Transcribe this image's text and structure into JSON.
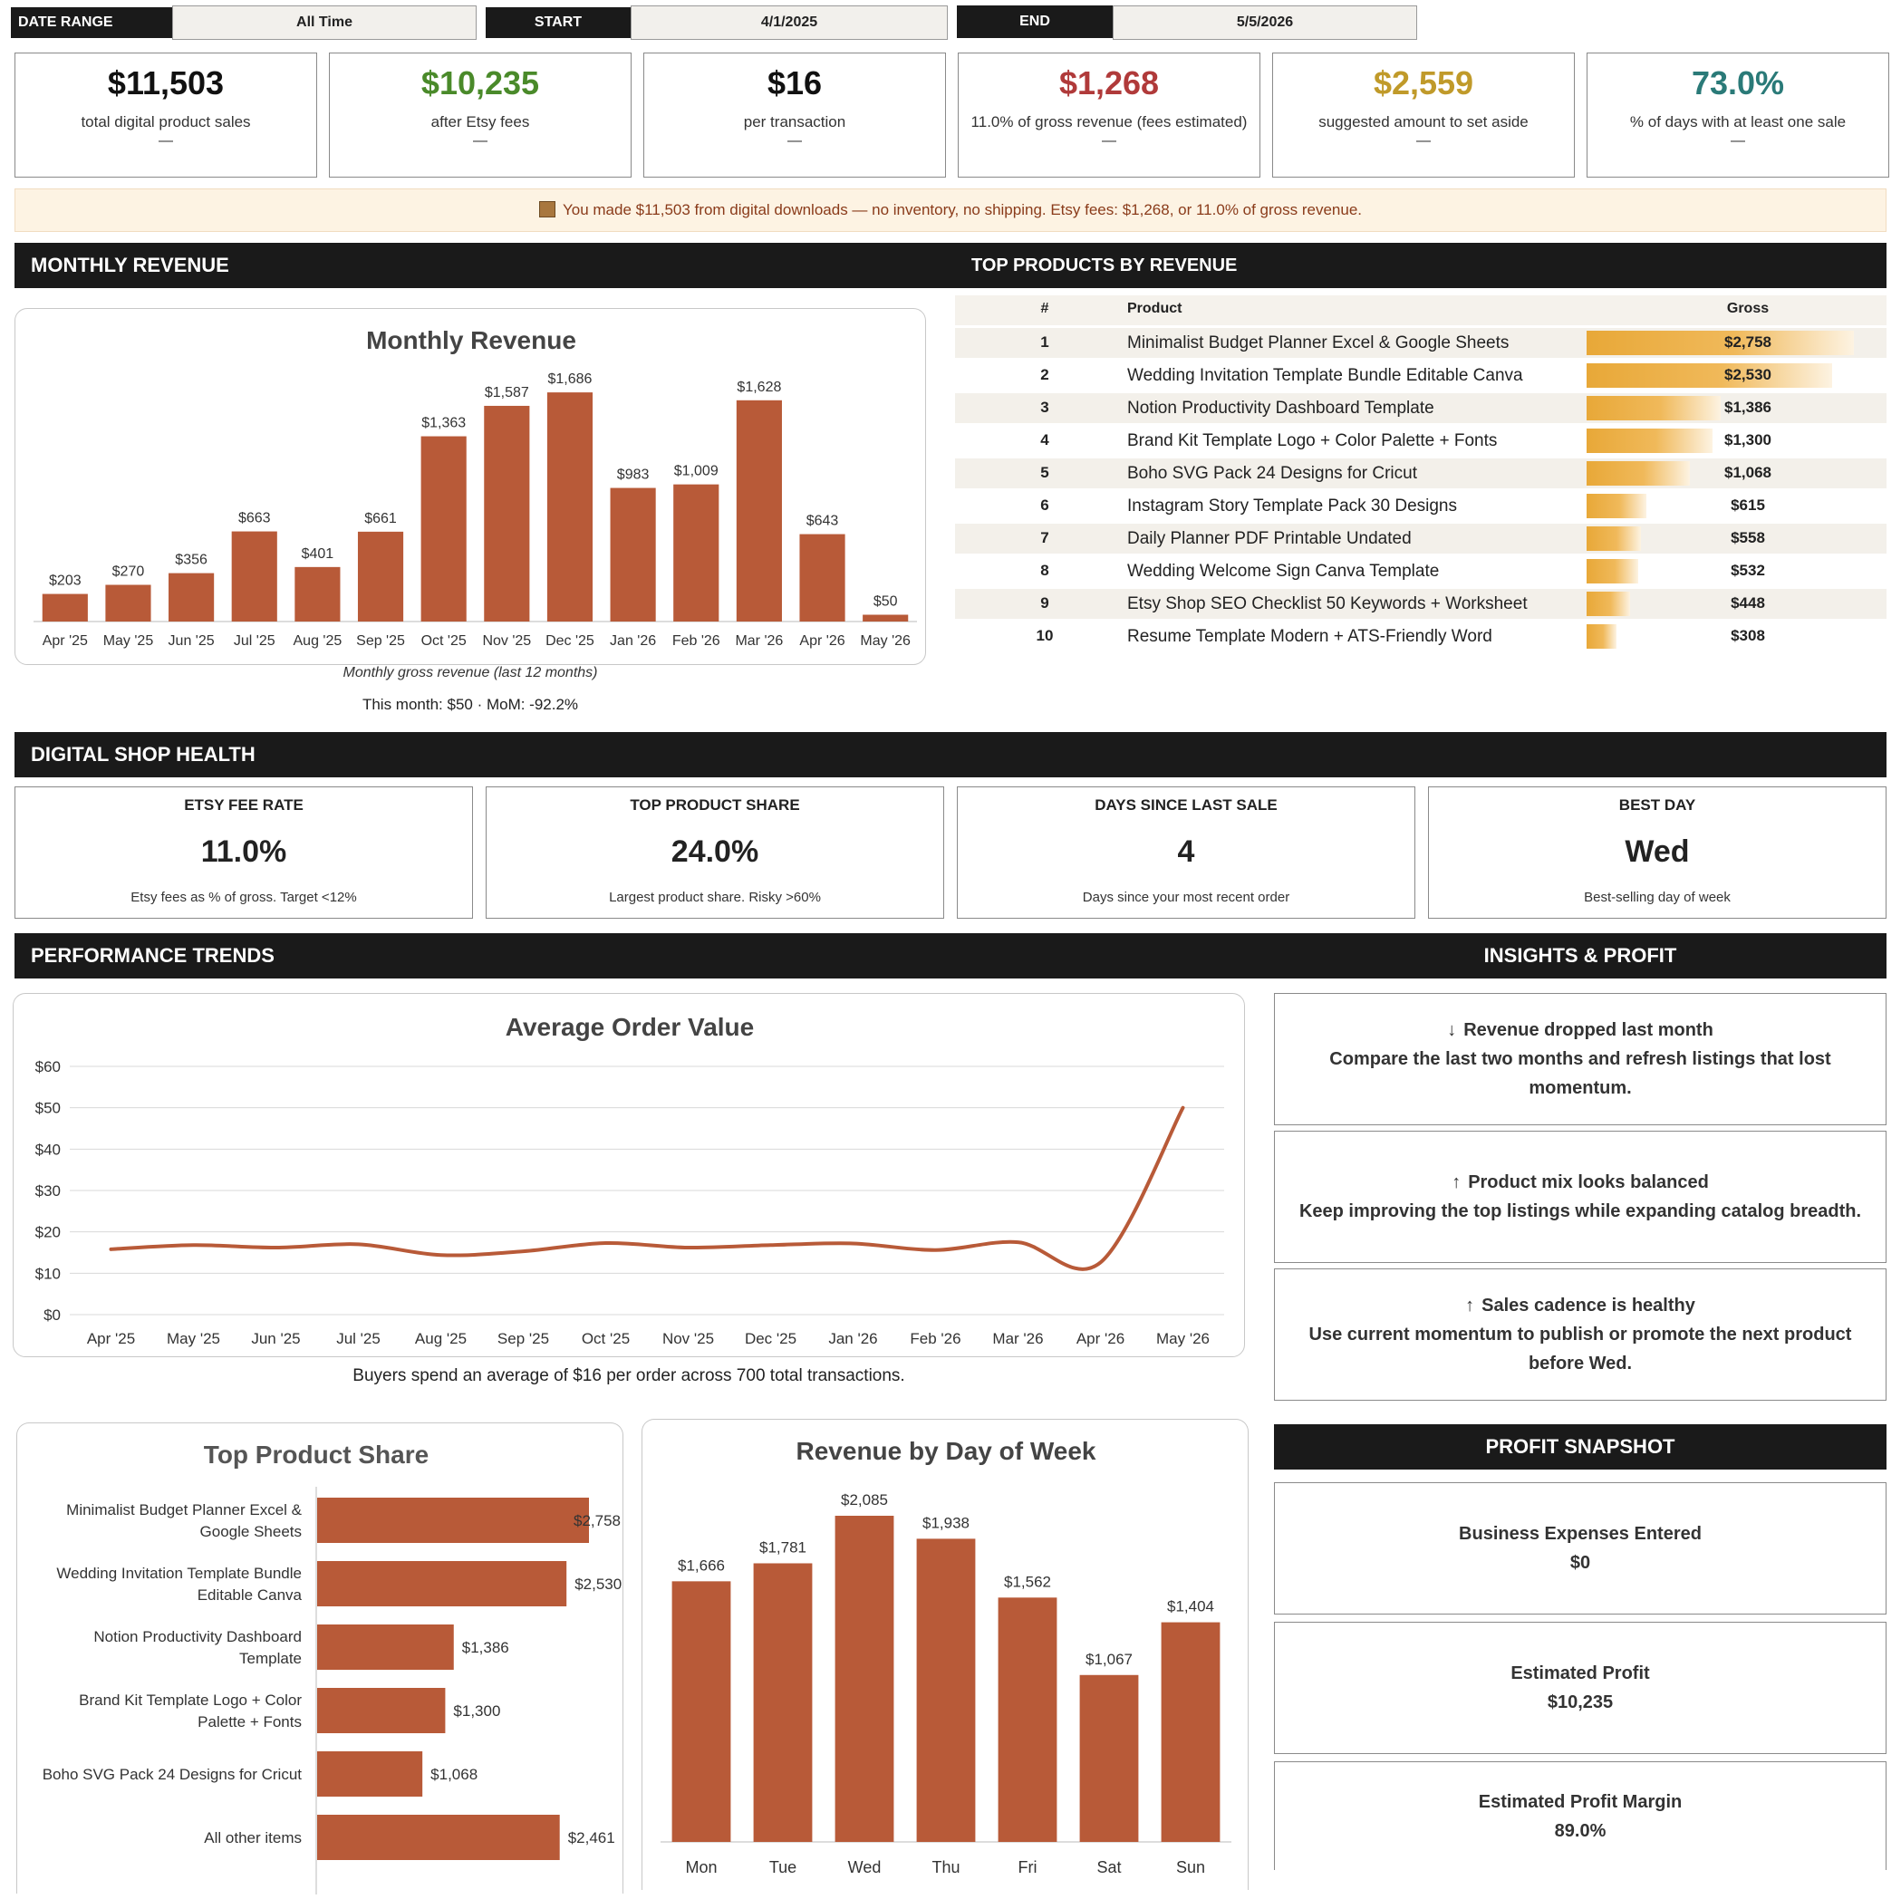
{
  "filters": {
    "date_range_label": "DATE RANGE",
    "date_range_value": "All Time",
    "start_label": "START",
    "start_value": "4/1/2025",
    "end_label": "END",
    "end_value": "5/5/2026"
  },
  "kpis": [
    {
      "value": "$11,503",
      "sub": "total digital product sales",
      "delta": "—",
      "color": "#111111"
    },
    {
      "value": "$10,235",
      "sub": "after Etsy fees",
      "delta": "—",
      "color": "#4a8a2a"
    },
    {
      "value": "$16",
      "sub": "per transaction",
      "delta": "—",
      "color": "#111111"
    },
    {
      "value": "$1,268",
      "sub": "11.0% of gross revenue (fees estimated)",
      "delta": "—",
      "color": "#b03a3a"
    },
    {
      "value": "$2,559",
      "sub": "suggested amount to set aside",
      "delta": "—",
      "color": "#c09a2a"
    },
    {
      "value": "73.0%",
      "sub": "% of days with at least one sale",
      "delta": "—",
      "color": "#2a7a78"
    }
  ],
  "banner": {
    "icon": "package-icon",
    "text": "You made $11,503 from digital downloads — no inventory, no shipping. Etsy fees: $1,268, or 11.0% of gross revenue."
  },
  "sections": {
    "monthly_revenue": "MONTHLY REVENUE",
    "top_products": "TOP PRODUCTS BY REVENUE",
    "shop_health": "DIGITAL SHOP HEALTH",
    "performance": "PERFORMANCE TRENDS",
    "insights": "INSIGHTS & PROFIT",
    "profit_snapshot": "PROFIT SNAPSHOT"
  },
  "monthly_chart": {
    "caption": "Monthly gross revenue (last 12 months)",
    "summary": "This month: $50 · MoM: -92.2%"
  },
  "top_products": {
    "headers": {
      "num": "#",
      "product": "Product",
      "gross": "Gross"
    },
    "rows": [
      {
        "num": "1",
        "name": "Minimalist Budget Planner Excel & Google Sheets",
        "gross": "$2,758",
        "value": 2758
      },
      {
        "num": "2",
        "name": "Wedding Invitation Template Bundle Editable Canva",
        "gross": "$2,530",
        "value": 2530
      },
      {
        "num": "3",
        "name": "Notion Productivity Dashboard Template",
        "gross": "$1,386",
        "value": 1386
      },
      {
        "num": "4",
        "name": "Brand Kit Template Logo + Color Palette + Fonts",
        "gross": "$1,300",
        "value": 1300
      },
      {
        "num": "5",
        "name": "Boho SVG Pack 24 Designs for Cricut",
        "gross": "$1,068",
        "value": 1068
      },
      {
        "num": "6",
        "name": "Instagram Story Template Pack 30 Designs",
        "gross": "$615",
        "value": 615
      },
      {
        "num": "7",
        "name": "Daily Planner PDF Printable Undated",
        "gross": "$558",
        "value": 558
      },
      {
        "num": "8",
        "name": "Wedding Welcome Sign Canva Template",
        "gross": "$532",
        "value": 532
      },
      {
        "num": "9",
        "name": "Etsy Shop SEO Checklist 50 Keywords + Worksheet",
        "gross": "$448",
        "value": 448
      },
      {
        "num": "10",
        "name": "Resume Template Modern + ATS-Friendly Word",
        "gross": "$308",
        "value": 308
      }
    ]
  },
  "health": [
    {
      "title": "ETSY FEE RATE",
      "value": "11.0%",
      "sub": "Etsy fees as % of gross. Target <12%"
    },
    {
      "title": "TOP PRODUCT SHARE",
      "value": "24.0%",
      "sub": "Largest product share. Risky >60%"
    },
    {
      "title": "DAYS SINCE LAST SALE",
      "value": "4",
      "sub": "Days since your most recent order"
    },
    {
      "title": "BEST DAY",
      "value": "Wed",
      "sub": "Best-selling day of week"
    }
  ],
  "aov": {
    "caption": "Buyers spend an average of $16 per order across 700 total transactions."
  },
  "insights": [
    {
      "icon": "arrow-down-icon",
      "arrow": "↓",
      "title": "Revenue dropped last month",
      "body": "Compare the last two months and refresh listings that lost momentum."
    },
    {
      "icon": "arrow-up-icon",
      "arrow": "↑",
      "title": "Product mix looks balanced",
      "body": "Keep improving the top listings while expanding catalog breadth."
    },
    {
      "icon": "arrow-up-icon",
      "arrow": "↑",
      "title": "Sales cadence is healthy",
      "body": "Use current momentum to publish or promote the next product before Wed."
    }
  ],
  "profit": [
    {
      "label": "Business Expenses Entered",
      "value": "$0"
    },
    {
      "label": "Estimated Profit",
      "value": "$10,235"
    },
    {
      "label": "Estimated Profit Margin",
      "value": "89.0%"
    }
  ],
  "colors": {
    "bar": "#b85a38",
    "gold": "#e8a838",
    "dark": "#1a1a1a"
  },
  "chart_data": [
    {
      "type": "bar",
      "title": "Monthly Revenue",
      "categories": [
        "Apr '25",
        "May '25",
        "Jun '25",
        "Jul '25",
        "Aug '25",
        "Sep '25",
        "Oct '25",
        "Nov '25",
        "Dec '25",
        "Jan '26",
        "Feb '26",
        "Mar '26",
        "Apr '26",
        "May '26"
      ],
      "values": [
        203,
        270,
        356,
        663,
        401,
        661,
        1363,
        1587,
        1686,
        983,
        1009,
        1628,
        643,
        50
      ],
      "labels": [
        "$203",
        "$270",
        "$356",
        "$663",
        "$401",
        "$661",
        "$1,363",
        "$1,587",
        "$1,686",
        "$983",
        "$1,009",
        "$1,628",
        "$643",
        "$50"
      ],
      "ylim": [
        0,
        1800
      ]
    },
    {
      "type": "line",
      "title": "Average Order Value",
      "categories": [
        "Apr '25",
        "May '25",
        "Jun '25",
        "Jul '25",
        "Aug '25",
        "Sep '25",
        "Oct '25",
        "Nov '25",
        "Dec '25",
        "Jan '26",
        "Feb '26",
        "Mar '26",
        "Apr '26",
        "May '26"
      ],
      "values": [
        15.8,
        16.8,
        16.2,
        17.0,
        14.4,
        15.3,
        17.3,
        16.2,
        16.8,
        17.2,
        15.6,
        17.5,
        12.6,
        50.0
      ],
      "yticks": [
        "$0",
        "$10",
        "$20",
        "$30",
        "$40",
        "$50",
        "$60"
      ],
      "ylim": [
        0,
        60
      ],
      "grid": true
    },
    {
      "type": "bar",
      "orientation": "horizontal",
      "title": "Top Product Share",
      "categories": [
        "Minimalist Budget Planner Excel & Google Sheets",
        "Wedding Invitation Template Bundle Editable Canva",
        "Notion Productivity Dashboard Template",
        "Brand Kit Template Logo + Color Palette + Fonts",
        "Boho SVG Pack 24 Designs for Cricut",
        "All other items"
      ],
      "category_lines": [
        [
          "Minimalist Budget Planner Excel &",
          "Google Sheets"
        ],
        [
          "Wedding Invitation Template Bundle",
          "Editable Canva"
        ],
        [
          "Notion Productivity Dashboard",
          "Template"
        ],
        [
          "Brand Kit Template Logo + Color",
          "Palette + Fonts"
        ],
        [
          "Boho SVG Pack 24 Designs for Cricut"
        ],
        [
          "All other items"
        ]
      ],
      "values": [
        2758,
        2530,
        1386,
        1300,
        1068,
        2461
      ],
      "labels": [
        "$2,758",
        "$2,530",
        "$1,386",
        "$1,300",
        "$1,068",
        "$2,461"
      ]
    },
    {
      "type": "bar",
      "title": "Revenue by Day of Week",
      "categories": [
        "Mon",
        "Tue",
        "Wed",
        "Thu",
        "Fri",
        "Sat",
        "Sun"
      ],
      "values": [
        1666,
        1781,
        2085,
        1938,
        1562,
        1067,
        1404
      ],
      "labels": [
        "$1,666",
        "$1,781",
        "$2,085",
        "$1,938",
        "$1,562",
        "$1,067",
        "$1,404"
      ]
    }
  ]
}
